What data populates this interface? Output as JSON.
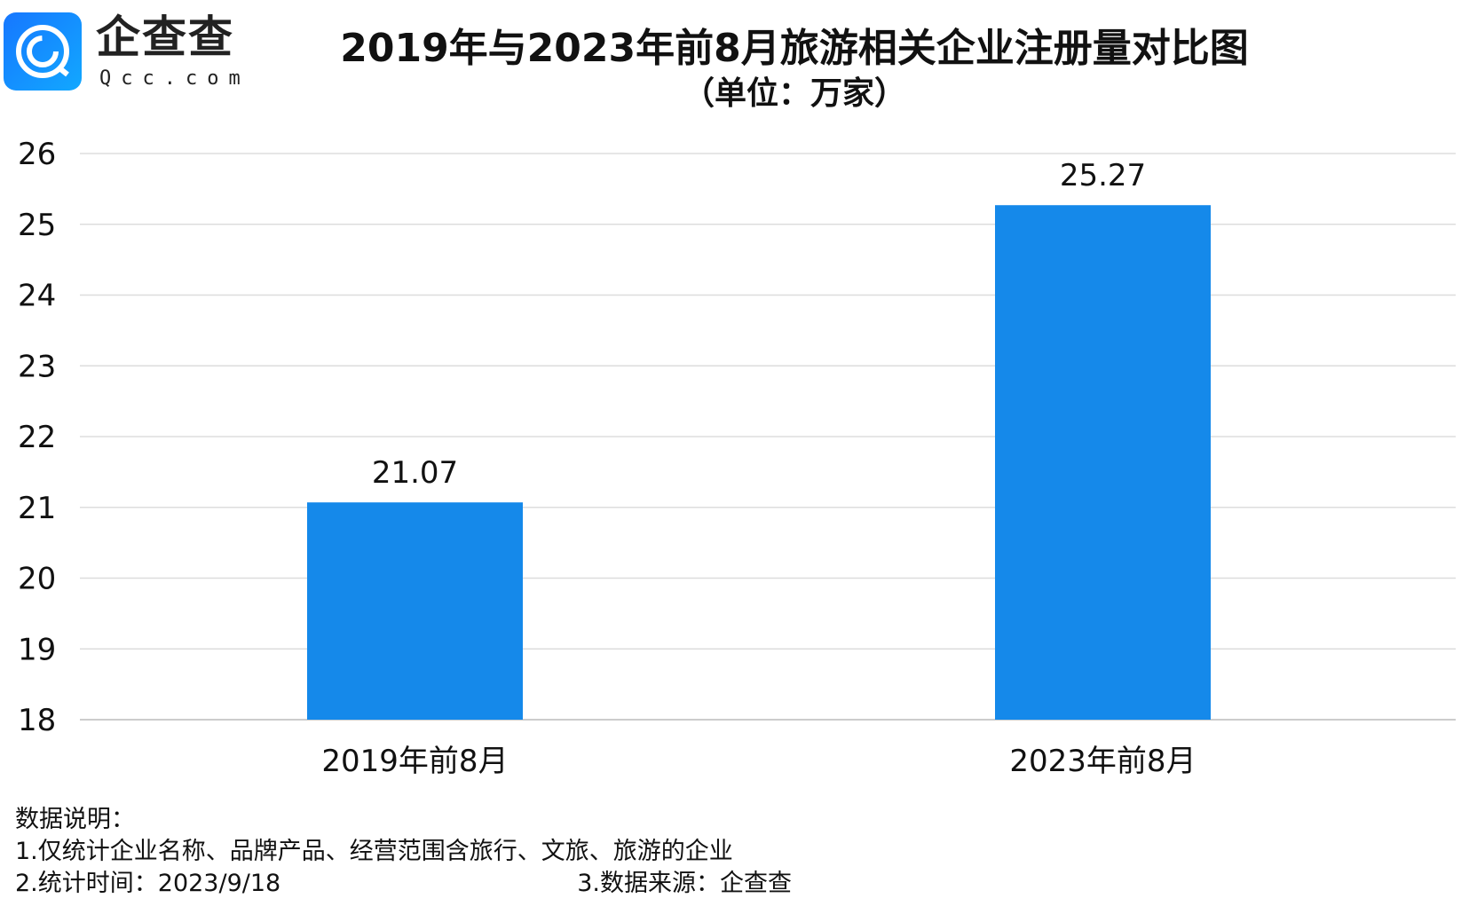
{
  "logo": {
    "name": "企查查",
    "sub": "Qcc.com"
  },
  "chart_data": {
    "type": "bar",
    "title": "2019年与2023年前8月旅游相关企业注册量对比图",
    "subtitle": "（单位：万家）",
    "categories": [
      "2019年前8月",
      "2023年前8月"
    ],
    "values": [
      21.07,
      25.27
    ],
    "value_labels": [
      "21.07",
      "25.27"
    ],
    "ylim": [
      18,
      26
    ],
    "yticks": [
      "18",
      "19",
      "20",
      "21",
      "22",
      "23",
      "24",
      "25",
      "26"
    ],
    "grid": true,
    "bar_color": "#1589ea"
  },
  "notes": {
    "heading": "数据说明：",
    "line1": "1.仅统计企业名称、品牌产品、经营范围含旅行、文旅、旅游的企业",
    "line2": "2.统计时间：2023/9/18",
    "line3": "3.数据来源：企查查"
  }
}
